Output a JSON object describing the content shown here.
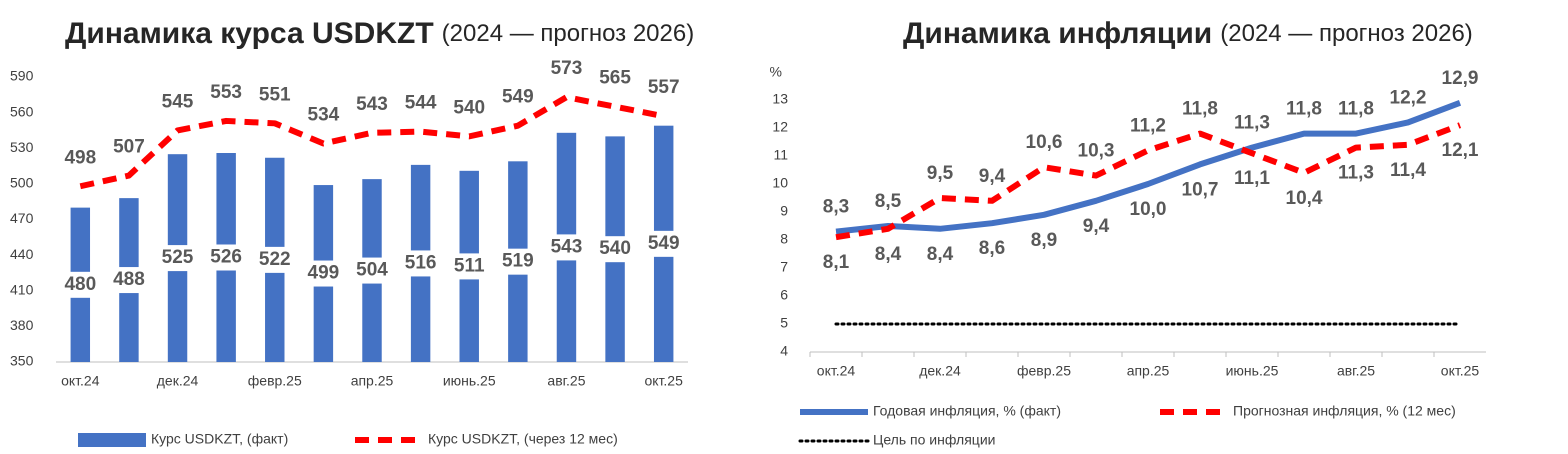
{
  "chart_data": [
    {
      "type": "bar",
      "title": "Динамика курса USDKZT",
      "subtitle": "(2024 — прогноз 2026)",
      "categories": [
        "окт.24",
        null,
        "дек.24",
        null,
        "февр.25",
        null,
        "апр.25",
        null,
        "июнь.25",
        null,
        "авг.25",
        null,
        "окт.25"
      ],
      "series": [
        {
          "name": "Курс USDKZT, (факт)",
          "type": "bar",
          "color": "#4472c4",
          "values": [
            480,
            488,
            525,
            526,
            522,
            499,
            504,
            516,
            511,
            519,
            543,
            540,
            549
          ]
        },
        {
          "name": "Курс USDKZT, (через 12 мес)",
          "type": "line",
          "line_style": "dashed",
          "color": "#ff0000",
          "values": [
            498,
            507,
            545,
            553,
            551,
            534,
            543,
            544,
            540,
            549,
            573,
            565,
            557
          ]
        }
      ],
      "ylim": [
        350,
        590
      ],
      "yticks": [
        350,
        380,
        410,
        440,
        470,
        500,
        530,
        560,
        590
      ]
    },
    {
      "type": "line",
      "title": "Динамика инфляции",
      "subtitle": "(2024 — прогноз 2026)",
      "y_label": "%",
      "categories": [
        "окт.24",
        null,
        "дек.24",
        null,
        "февр.25",
        null,
        "апр.25",
        null,
        "июнь.25",
        null,
        "авг.25",
        null,
        "окт.25"
      ],
      "series": [
        {
          "name": "Годовая инфляция, % (факт)",
          "line_style": "solid",
          "color": "#4472c4",
          "values": [
            8.3,
            8.5,
            8.4,
            8.6,
            8.9,
            9.4,
            10.0,
            10.7,
            11.3,
            11.8,
            11.8,
            12.2,
            12.9
          ],
          "value_labels": [
            "8,3",
            "8,5",
            "8,4",
            "8,6",
            "8,9",
            "9,4",
            "10,0",
            "10,7",
            "11,3",
            "11,8",
            "11,8",
            "12,2",
            "12,9"
          ]
        },
        {
          "name": "Прогнозная инфляция, % (12 мес)",
          "line_style": "dashed",
          "color": "#ff0000",
          "values": [
            8.1,
            8.4,
            9.5,
            9.4,
            10.6,
            10.3,
            11.2,
            11.8,
            11.1,
            10.4,
            11.3,
            11.4,
            12.1
          ],
          "value_labels": [
            "8,1",
            "8,4",
            "9,5",
            "9,4",
            "10,6",
            "10,3",
            "11,2",
            "11,8",
            "11,1",
            "10,4",
            "11,3",
            "11,4",
            "12,1"
          ]
        },
        {
          "name": "Цель по инфляции",
          "line_style": "dotted",
          "color": "#000000",
          "values": [
            5,
            5,
            5,
            5,
            5,
            5,
            5,
            5,
            5,
            5,
            5,
            5,
            5
          ]
        }
      ],
      "ylim": [
        4,
        13
      ],
      "yticks": [
        4,
        5,
        6,
        7,
        8,
        9,
        10,
        11,
        12,
        13
      ]
    }
  ]
}
